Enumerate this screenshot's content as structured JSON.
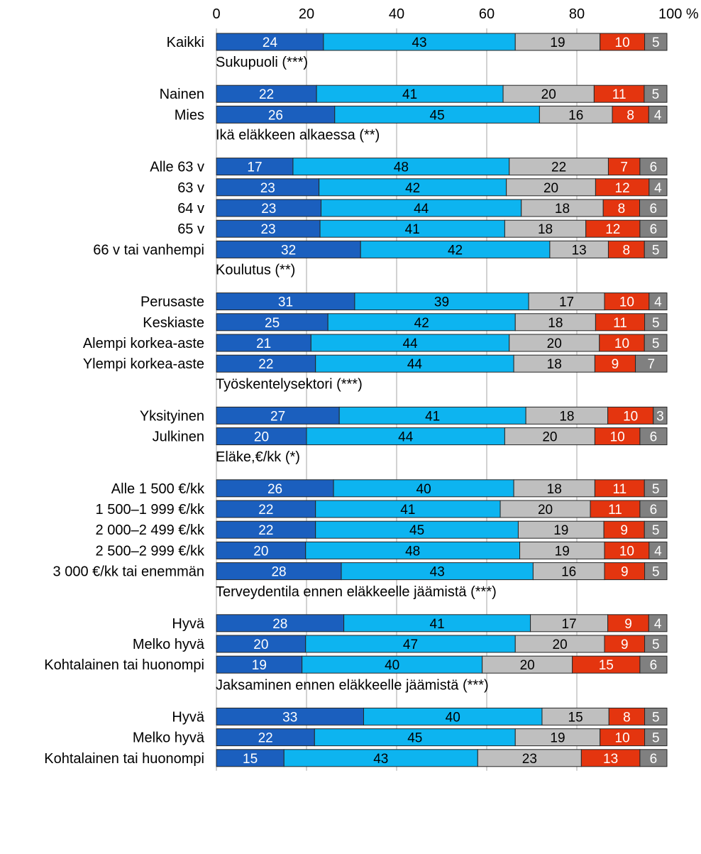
{
  "chart_data": {
    "type": "bar",
    "orientation": "horizontal",
    "stacked": true,
    "xlim": [
      0,
      100
    ],
    "ticks": [
      "0",
      "20",
      "40",
      "60",
      "80",
      "100 %"
    ],
    "grid": true,
    "series_colors": [
      "#1b5fbe",
      "#0db4f0",
      "#bfbfbf",
      "#e4350f",
      "#808080"
    ],
    "label_colors": [
      "#ffffff",
      "#000000",
      "#000000",
      "#ffffff",
      "#ffffff"
    ],
    "groups": [
      {
        "title": "",
        "rows": [
          {
            "label": "Kaikki",
            "values": [
              24,
              43,
              19,
              10,
              5
            ]
          }
        ]
      },
      {
        "title": "Sukupuoli (***)",
        "rows": [
          {
            "label": "Nainen",
            "values": [
              22,
              41,
              20,
              11,
              5
            ]
          },
          {
            "label": "Mies",
            "values": [
              26,
              45,
              16,
              8,
              4
            ]
          }
        ]
      },
      {
        "title": "Ikä eläkkeen alkaessa (**)",
        "rows": [
          {
            "label": "Alle 63 v",
            "values": [
              17,
              48,
              22,
              7,
              6
            ]
          },
          {
            "label": "63 v",
            "values": [
              23,
              42,
              20,
              12,
              4
            ]
          },
          {
            "label": "64 v",
            "values": [
              23,
              44,
              18,
              8,
              6
            ]
          },
          {
            "label": "65 v",
            "values": [
              23,
              41,
              18,
              12,
              6
            ]
          },
          {
            "label": "66 v tai vanhempi",
            "values": [
              32,
              42,
              13,
              8,
              5
            ]
          }
        ]
      },
      {
        "title": "Koulutus (**)",
        "rows": [
          {
            "label": "Perusaste",
            "values": [
              31,
              39,
              17,
              10,
              4
            ]
          },
          {
            "label": "Keskiaste",
            "values": [
              25,
              42,
              18,
              11,
              5
            ]
          },
          {
            "label": "Alempi korkea-aste",
            "values": [
              21,
              44,
              20,
              10,
              5
            ]
          },
          {
            "label": "Ylempi korkea-aste",
            "values": [
              22,
              44,
              18,
              9,
              7
            ]
          }
        ]
      },
      {
        "title": "Työskentelysektori (***)",
        "rows": [
          {
            "label": "Yksityinen",
            "values": [
              27,
              41,
              18,
              10,
              3
            ]
          },
          {
            "label": "Julkinen",
            "values": [
              20,
              44,
              20,
              10,
              6
            ]
          }
        ]
      },
      {
        "title": "Eläke,€/kk (*)",
        "rows": [
          {
            "label": "Alle 1 500 €/kk",
            "values": [
              26,
              40,
              18,
              11,
              5
            ]
          },
          {
            "label": "1 500–1 999 €/kk",
            "values": [
              22,
              41,
              20,
              11,
              6
            ]
          },
          {
            "label": "2 000–2 499 €/kk",
            "values": [
              22,
              45,
              19,
              9,
              5
            ]
          },
          {
            "label": "2 500–2 999 €/kk",
            "values": [
              20,
              48,
              19,
              10,
              4
            ]
          },
          {
            "label": "3 000 €/kk tai enemmän",
            "values": [
              28,
              43,
              16,
              9,
              5
            ]
          }
        ]
      },
      {
        "title": "Terveydentila ennen eläkkeelle jäämistä (***)",
        "rows": [
          {
            "label": "Hyvä",
            "values": [
              28,
              41,
              17,
              9,
              4
            ]
          },
          {
            "label": "Melko hyvä",
            "values": [
              20,
              47,
              20,
              9,
              5
            ]
          },
          {
            "label": "Kohtalainen tai huonompi",
            "values": [
              19,
              40,
              20,
              15,
              6
            ]
          }
        ]
      },
      {
        "title": "Jaksaminen ennen eläkkeelle jäämistä (***)",
        "rows": [
          {
            "label": "Hyvä",
            "values": [
              33,
              40,
              15,
              8,
              5
            ]
          },
          {
            "label": "Melko hyvä",
            "values": [
              22,
              45,
              19,
              10,
              5
            ]
          },
          {
            "label": "Kohtalainen tai huonompi",
            "values": [
              15,
              43,
              23,
              13,
              6
            ]
          }
        ]
      }
    ]
  }
}
